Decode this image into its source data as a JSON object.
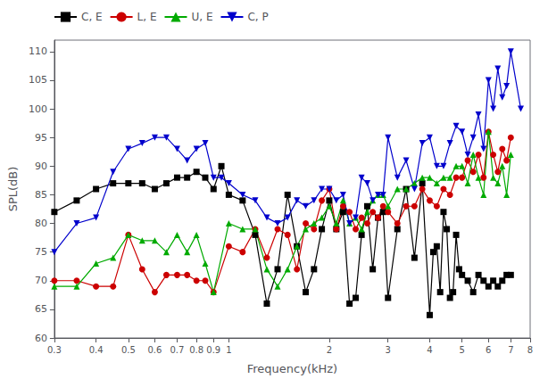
{
  "chart_data": {
    "type": "line",
    "title": "",
    "xlabel": "Frequency(kHz)",
    "ylabel": "SPL(dB)",
    "log": "x",
    "grid": false,
    "legend": "upper left",
    "xlim": [
      0.3,
      8
    ],
    "xticks": [
      0.3,
      0.4,
      0.5,
      0.6,
      0.7,
      0.8,
      0.9,
      1,
      2,
      3,
      4,
      5,
      6,
      7,
      8
    ],
    "ylim": [
      60,
      112
    ],
    "yticks": [
      60,
      65,
      70,
      75,
      80,
      85,
      90,
      95,
      100,
      105,
      110
    ],
    "series": [
      {
        "name": "C, E",
        "color": "#000000",
        "marker": "square",
        "x": [
          0.3,
          0.35,
          0.4,
          0.45,
          0.5,
          0.55,
          0.6,
          0.65,
          0.7,
          0.75,
          0.8,
          0.85,
          0.9,
          0.95,
          1.0,
          1.1,
          1.2,
          1.3,
          1.4,
          1.5,
          1.6,
          1.7,
          1.8,
          1.9,
          2.0,
          2.1,
          2.2,
          2.3,
          2.4,
          2.5,
          2.6,
          2.7,
          2.8,
          2.9,
          3.0,
          3.2,
          3.4,
          3.6,
          3.8,
          4.0,
          4.1,
          4.2,
          4.3,
          4.4,
          4.5,
          4.6,
          4.7,
          4.8,
          4.9,
          5.0,
          5.2,
          5.4,
          5.6,
          5.8,
          6.0,
          6.2,
          6.4,
          6.6,
          6.8,
          7.0
        ],
        "values": [
          82,
          84,
          86,
          87,
          87,
          87,
          86,
          87,
          88,
          88,
          89,
          88,
          86,
          90,
          85,
          84,
          78,
          66,
          72,
          85,
          76,
          68,
          72,
          79,
          84,
          79,
          82,
          66,
          67,
          78,
          83,
          72,
          81,
          82,
          67,
          79,
          86,
          74,
          87,
          64,
          75,
          76,
          68,
          82,
          79,
          67,
          68,
          78,
          72,
          71,
          70,
          68,
          71,
          70,
          69,
          70,
          69,
          70,
          71,
          71
        ]
      },
      {
        "name": "L, E",
        "color": "#cc0000",
        "marker": "circle",
        "x": [
          0.3,
          0.35,
          0.4,
          0.45,
          0.5,
          0.55,
          0.6,
          0.65,
          0.7,
          0.75,
          0.8,
          0.85,
          0.9,
          1.0,
          1.1,
          1.2,
          1.3,
          1.4,
          1.5,
          1.6,
          1.7,
          1.8,
          1.9,
          2.0,
          2.1,
          2.2,
          2.3,
          2.4,
          2.5,
          2.6,
          2.7,
          2.8,
          2.9,
          3.0,
          3.2,
          3.4,
          3.6,
          3.8,
          4.0,
          4.2,
          4.4,
          4.6,
          4.8,
          5.0,
          5.2,
          5.4,
          5.6,
          5.8,
          6.0,
          6.2,
          6.4,
          6.6,
          6.8,
          7.0
        ],
        "values": [
          70,
          70,
          69,
          69,
          78,
          72,
          68,
          71,
          71,
          71,
          70,
          70,
          68,
          76,
          75,
          79,
          74,
          79,
          78,
          72,
          80,
          79,
          84,
          86,
          79,
          83,
          82,
          79,
          81,
          80,
          82,
          81,
          83,
          82,
          80,
          83,
          83,
          86,
          84,
          83,
          86,
          85,
          88,
          88,
          91,
          89,
          92,
          88,
          96,
          92,
          89,
          93,
          91,
          95
        ]
      },
      {
        "name": "U, E",
        "color": "#00aa00",
        "marker": "triangle-up",
        "x": [
          0.3,
          0.35,
          0.4,
          0.45,
          0.5,
          0.55,
          0.6,
          0.65,
          0.7,
          0.75,
          0.8,
          0.85,
          0.9,
          1.0,
          1.1,
          1.2,
          1.3,
          1.4,
          1.5,
          1.6,
          1.7,
          1.8,
          1.9,
          2.0,
          2.1,
          2.2,
          2.3,
          2.4,
          2.5,
          2.6,
          2.7,
          2.8,
          2.9,
          3.0,
          3.2,
          3.4,
          3.6,
          3.8,
          4.0,
          4.2,
          4.4,
          4.6,
          4.8,
          5.0,
          5.2,
          5.4,
          5.6,
          5.8,
          6.0,
          6.2,
          6.4,
          6.6,
          6.8,
          7.0
        ],
        "values": [
          69,
          69,
          73,
          74,
          78,
          77,
          77,
          75,
          78,
          75,
          78,
          73,
          68,
          80,
          79,
          79,
          72,
          69,
          72,
          76,
          79,
          80,
          81,
          83,
          80,
          84,
          80,
          81,
          79,
          82,
          84,
          85,
          85,
          83,
          86,
          86,
          87,
          88,
          88,
          87,
          88,
          88,
          90,
          90,
          87,
          92,
          88,
          85,
          96,
          88,
          87,
          90,
          85,
          92
        ]
      },
      {
        "name": "C, P",
        "color": "#0000cc",
        "marker": "triangle-down",
        "x": [
          0.3,
          0.35,
          0.4,
          0.45,
          0.5,
          0.55,
          0.6,
          0.65,
          0.7,
          0.75,
          0.8,
          0.85,
          0.9,
          0.95,
          1.0,
          1.1,
          1.2,
          1.3,
          1.4,
          1.5,
          1.6,
          1.7,
          1.8,
          1.9,
          2.0,
          2.1,
          2.2,
          2.3,
          2.4,
          2.5,
          2.6,
          2.7,
          2.8,
          2.9,
          3.0,
          3.2,
          3.4,
          3.6,
          3.8,
          4.0,
          4.2,
          4.4,
          4.6,
          4.8,
          5.0,
          5.2,
          5.4,
          5.6,
          5.8,
          6.0,
          6.2,
          6.4,
          6.6,
          6.8,
          7.0,
          7.5
        ],
        "values": [
          75,
          80,
          81,
          89,
          93,
          94,
          95,
          95,
          93,
          91,
          93,
          94,
          88,
          88,
          87,
          85,
          84,
          81,
          80,
          81,
          84,
          83,
          84,
          86,
          86,
          84,
          85,
          80,
          81,
          88,
          87,
          84,
          85,
          85,
          95,
          88,
          91,
          86,
          94,
          95,
          90,
          90,
          94,
          97,
          96,
          92,
          95,
          99,
          93,
          105,
          100,
          107,
          102,
          104,
          110,
          100
        ]
      }
    ]
  }
}
